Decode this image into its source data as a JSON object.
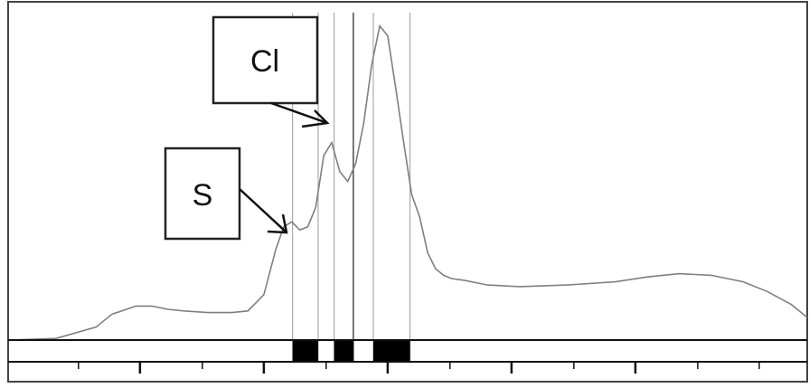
{
  "chart_data": {
    "type": "line",
    "title": "",
    "xlabel": "",
    "ylabel": "",
    "grid": false,
    "xlim": [
      0,
      100
    ],
    "ylim": [
      0,
      100
    ],
    "series": [
      {
        "x": [
          0,
          6,
          11,
          13,
          16,
          18,
          20,
          22,
          25,
          28,
          30,
          32,
          33.5,
          34.5,
          35.5,
          36.5,
          37.5,
          38.5,
          39.5,
          40.5,
          41.5,
          42.5,
          43.5,
          44.5,
          45.5,
          46.5,
          47.5,
          48.5,
          49.5,
          50.5,
          51.5,
          52.5,
          53.5,
          54.5,
          55.5,
          57,
          60,
          64,
          70,
          76,
          80,
          84,
          88,
          92,
          95,
          98,
          100
        ],
        "y": [
          0,
          0.5,
          4,
          8,
          10.5,
          10.5,
          9.5,
          9,
          8.5,
          8.5,
          9,
          14,
          28,
          35,
          36.5,
          34,
          35,
          41,
          57,
          61,
          52,
          49,
          54.5,
          67,
          85,
          97,
          94,
          78,
          61,
          45,
          38,
          27,
          22,
          20,
          19,
          18.5,
          17,
          16.5,
          17,
          18,
          19.5,
          20.5,
          20,
          18,
          15,
          11,
          7
        ]
      }
    ],
    "vertical_markers": [
      35.6,
      38.8,
      40.8,
      43.2,
      45.7,
      50.3
    ],
    "annotations": [
      {
        "text": "S",
        "points_to": [
          35.6,
          37
        ]
      },
      {
        "text": "Cl",
        "points_to": [
          40.8,
          59
        ]
      }
    ],
    "bands": [
      [
        35.6,
        38.8
      ],
      [
        40.8,
        43.2
      ],
      [
        45.7,
        50.3
      ]
    ],
    "x_ticks": [
      8.8,
      16.5,
      24.3,
      32.0,
      39.8,
      47.5,
      55.3,
      63.0,
      70.8,
      78.5,
      86.3,
      94.0
    ],
    "x_major_ticks": [
      16.5,
      32.0,
      47.5,
      63.0,
      78.5
    ]
  }
}
